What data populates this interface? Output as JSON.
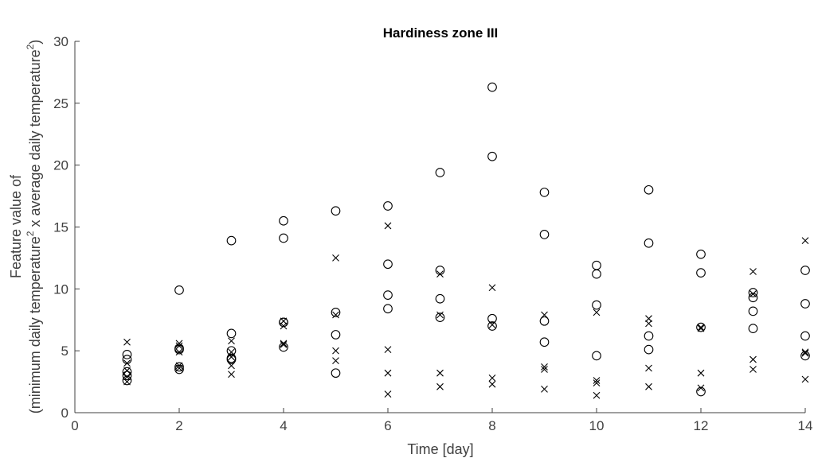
{
  "chart_data": {
    "type": "scatter",
    "title": "Hardiness zone III",
    "xlabel": "Time [day]",
    "ylabel_line1": "Feature value of",
    "ylabel_line2": {
      "p1": "(minimum daily temperature",
      "s1": "2",
      "p2": " x average daily temperature",
      "s2": "2",
      "p3": ")"
    },
    "xlim": [
      0,
      14
    ],
    "ylim": [
      0,
      30
    ],
    "xticks": [
      0,
      2,
      4,
      6,
      8,
      10,
      12,
      14
    ],
    "yticks": [
      0,
      5,
      10,
      15,
      20,
      25,
      30
    ],
    "grid": false,
    "series": [
      {
        "marker": "circle",
        "points": [
          [
            1,
            4.7
          ],
          [
            1,
            4.3
          ],
          [
            1,
            3.3
          ],
          [
            1,
            3.0
          ],
          [
            1,
            2.6
          ],
          [
            2,
            9.9
          ],
          [
            2,
            5.2
          ],
          [
            2,
            5.1
          ],
          [
            2,
            3.7
          ],
          [
            2,
            3.5
          ],
          [
            3,
            13.9
          ],
          [
            3,
            6.4
          ],
          [
            3,
            5.0
          ],
          [
            3,
            4.4
          ],
          [
            3,
            4.3
          ],
          [
            4,
            15.5
          ],
          [
            4,
            14.1
          ],
          [
            4,
            7.3
          ],
          [
            4,
            7.3
          ],
          [
            4,
            5.3
          ],
          [
            5,
            16.3
          ],
          [
            5,
            8.1
          ],
          [
            5,
            6.3
          ],
          [
            5,
            3.2
          ],
          [
            6,
            16.7
          ],
          [
            6,
            12.0
          ],
          [
            6,
            9.5
          ],
          [
            6,
            8.4
          ],
          [
            7,
            19.4
          ],
          [
            7,
            11.5
          ],
          [
            7,
            9.2
          ],
          [
            7,
            7.7
          ],
          [
            8,
            26.3
          ],
          [
            8,
            20.7
          ],
          [
            8,
            7.6
          ],
          [
            8,
            7.0
          ],
          [
            9,
            17.8
          ],
          [
            9,
            14.4
          ],
          [
            9,
            7.4
          ],
          [
            9,
            5.7
          ],
          [
            10,
            11.9
          ],
          [
            10,
            11.2
          ],
          [
            10,
            8.7
          ],
          [
            10,
            4.6
          ],
          [
            11,
            18.0
          ],
          [
            11,
            13.7
          ],
          [
            11,
            6.2
          ],
          [
            11,
            5.1
          ],
          [
            12,
            12.8
          ],
          [
            12,
            11.3
          ],
          [
            12,
            6.9
          ],
          [
            12,
            1.7
          ],
          [
            13,
            9.7
          ],
          [
            13,
            9.3
          ],
          [
            13,
            8.2
          ],
          [
            13,
            6.8
          ],
          [
            14,
            11.5
          ],
          [
            14,
            8.8
          ],
          [
            14,
            6.2
          ],
          [
            14,
            4.6
          ]
        ]
      },
      {
        "marker": "x",
        "points": [
          [
            1,
            5.7
          ],
          [
            1,
            4.0
          ],
          [
            1,
            3.4
          ],
          [
            1,
            2.9
          ],
          [
            1,
            2.5
          ],
          [
            2,
            5.6
          ],
          [
            2,
            5.4
          ],
          [
            2,
            4.9
          ],
          [
            2,
            3.8
          ],
          [
            2,
            3.6
          ],
          [
            3,
            5.8
          ],
          [
            3,
            4.9
          ],
          [
            3,
            4.5
          ],
          [
            3,
            3.8
          ],
          [
            3,
            3.1
          ],
          [
            4,
            7.4
          ],
          [
            4,
            7.0
          ],
          [
            4,
            5.6
          ],
          [
            4,
            5.5
          ],
          [
            5,
            12.5
          ],
          [
            5,
            7.9
          ],
          [
            5,
            5.0
          ],
          [
            5,
            4.2
          ],
          [
            6,
            15.1
          ],
          [
            6,
            5.1
          ],
          [
            6,
            3.2
          ],
          [
            6,
            1.5
          ],
          [
            7,
            11.2
          ],
          [
            7,
            7.9
          ],
          [
            7,
            3.2
          ],
          [
            7,
            2.1
          ],
          [
            8,
            10.1
          ],
          [
            8,
            7.1
          ],
          [
            8,
            2.8
          ],
          [
            8,
            2.3
          ],
          [
            9,
            7.9
          ],
          [
            9,
            3.7
          ],
          [
            9,
            3.5
          ],
          [
            9,
            1.9
          ],
          [
            10,
            8.1
          ],
          [
            10,
            2.6
          ],
          [
            10,
            2.4
          ],
          [
            10,
            1.4
          ],
          [
            11,
            7.6
          ],
          [
            11,
            7.2
          ],
          [
            11,
            3.6
          ],
          [
            11,
            2.1
          ],
          [
            12,
            6.9
          ],
          [
            12,
            6.8
          ],
          [
            12,
            3.2
          ],
          [
            12,
            2.0
          ],
          [
            13,
            11.4
          ],
          [
            13,
            9.6
          ],
          [
            13,
            4.3
          ],
          [
            13,
            3.5
          ],
          [
            14,
            13.9
          ],
          [
            14,
            4.9
          ],
          [
            14,
            4.8
          ],
          [
            14,
            2.7
          ]
        ]
      }
    ]
  }
}
